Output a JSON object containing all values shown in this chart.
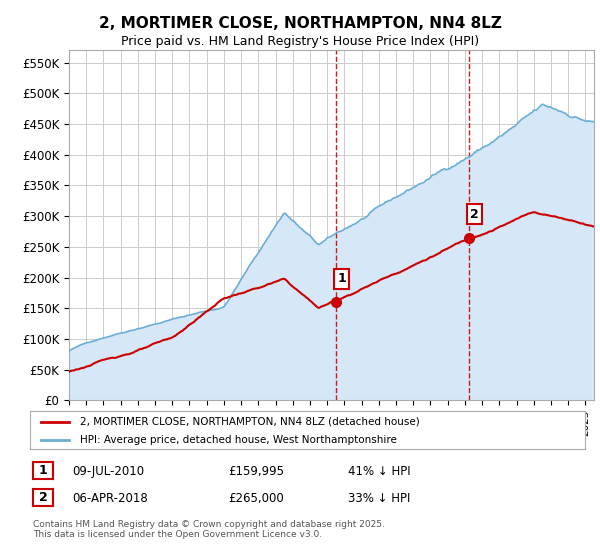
{
  "title": "2, MORTIMER CLOSE, NORTHAMPTON, NN4 8LZ",
  "subtitle": "Price paid vs. HM Land Registry's House Price Index (HPI)",
  "ylabel_ticks": [
    "£0",
    "£50K",
    "£100K",
    "£150K",
    "£200K",
    "£250K",
    "£300K",
    "£350K",
    "£400K",
    "£450K",
    "£500K",
    "£550K"
  ],
  "ytick_values": [
    0,
    50000,
    100000,
    150000,
    200000,
    250000,
    300000,
    350000,
    400000,
    450000,
    500000,
    550000
  ],
  "ylim": [
    0,
    570000
  ],
  "xlim_start": 1995.0,
  "xlim_end": 2025.5,
  "legend_entries": [
    "2, MORTIMER CLOSE, NORTHAMPTON, NN4 8LZ (detached house)",
    "HPI: Average price, detached house, West Northamptonshire"
  ],
  "legend_colors": [
    "#cc0000",
    "#6baed6"
  ],
  "sale1_date": 2010.53,
  "sale1_price": 159995,
  "sale1_label": "1",
  "sale1_vline": 2010.53,
  "sale2_date": 2018.26,
  "sale2_price": 265000,
  "sale2_label": "2",
  "sale2_vline": 2018.26,
  "table_rows": [
    [
      "1",
      "09-JUL-2010",
      "£159,995",
      "41% ↓ HPI"
    ],
    [
      "2",
      "06-APR-2018",
      "£265,000",
      "33% ↓ HPI"
    ]
  ],
  "footnote": "Contains HM Land Registry data © Crown copyright and database right 2025.\nThis data is licensed under the Open Government Licence v3.0.",
  "bg_color": "#ffffff",
  "plot_bg_color": "#ffffff",
  "grid_color": "#cccccc",
  "hpi_line_color": "#6baed6",
  "hpi_fill_color": "#d6e8f7",
  "price_line_color": "#cc0000",
  "vline_color": "#cc0000",
  "sale_dot_color": "#cc0000"
}
